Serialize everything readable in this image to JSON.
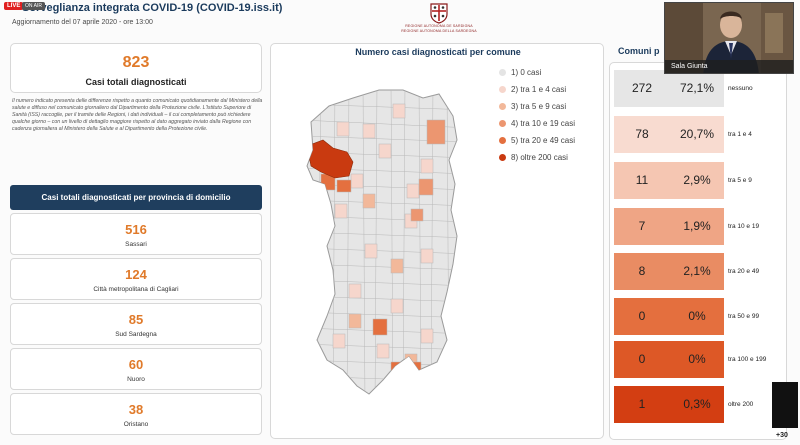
{
  "header": {
    "live_badge": "LIVE",
    "live_sub": "ON AIR",
    "title": "Sorveglianza integrata COVID-19 (COVID-19.iss.it)",
    "subtitle": "Aggiornamento del 07 aprile 2020 - ore 13:00",
    "logo_line1": "REGIONE AUTONOMA DE SARDIGNA",
    "logo_line2": "REGIONE AUTONOMA DELLA SARDEGNA"
  },
  "total": {
    "value": "823",
    "label": "Casi totali diagnosticati"
  },
  "note": "Il numero indicato presenta delle differenze rispetto a quanto comunicato quotidianamente dal Ministero della salute e diffuso nel comunicato giornaliero dal Dipartimento della Protezione civile. L'Istituto Superiore di Sanità (ISS) raccoglie, per il tramite delle Regioni, i dati individuali – il cui completamento può richiedere qualche giorno – con un livello di dettaglio maggiore rispetto al dato aggregato inviato dalla Regione con cadenza giornaliera al Ministero della Salute e al Dipartimento della Protezione civile.",
  "province_header": "Casi totali diagnosticati per provincia di domicilio",
  "provinces": [
    {
      "value": "516",
      "name": "Sassari"
    },
    {
      "value": "124",
      "name": "Città metropolitana di Cagliari"
    },
    {
      "value": "85",
      "name": "Sud Sardegna"
    },
    {
      "value": "60",
      "name": "Nuoro"
    },
    {
      "value": "38",
      "name": "Oristano"
    }
  ],
  "map": {
    "title": "Numero casi diagnosticati per comune",
    "legend": [
      {
        "label": "1) 0 casi",
        "color": "#e4e4e4"
      },
      {
        "label": "2) tra 1 e 4 casi",
        "color": "#f6d6cc"
      },
      {
        "label": "3) tra 5 e 9 casi",
        "color": "#f2b89a"
      },
      {
        "label": "4) tra 10 e 19 casi",
        "color": "#ec9670"
      },
      {
        "label": "5) tra 20 e 49 casi",
        "color": "#e4703f"
      },
      {
        "label": "8) oltre 200 casi",
        "color": "#c93a10"
      }
    ]
  },
  "comuni": {
    "title": "Comuni p",
    "rows": [
      {
        "count": "272",
        "pct": "72,1%",
        "range": "nessuno",
        "color": "#e6e6e6"
      },
      {
        "count": "78",
        "pct": "20,7%",
        "range": "tra 1 e 4",
        "color": "#f8dbd0"
      },
      {
        "count": "11",
        "pct": "2,9%",
        "range": "tra 5 e 9",
        "color": "#f5c6b2"
      },
      {
        "count": "7",
        "pct": "1,9%",
        "range": "tra 10 e 19",
        "color": "#efa585"
      },
      {
        "count": "8",
        "pct": "2,1%",
        "range": "tra 20 e 49",
        "color": "#e98c63"
      },
      {
        "count": "0",
        "pct": "0%",
        "range": "tra 50 e 99",
        "color": "#e46f3e"
      },
      {
        "count": "0",
        "pct": "0%",
        "range": "tra 100 e 199",
        "color": "#dd5826"
      },
      {
        "count": "1",
        "pct": "0,3%",
        "range": "oltre 200",
        "color": "#d33e12"
      }
    ]
  },
  "video": {
    "label": "Sala Giunta"
  },
  "overlay": {
    "plus": "+30"
  }
}
